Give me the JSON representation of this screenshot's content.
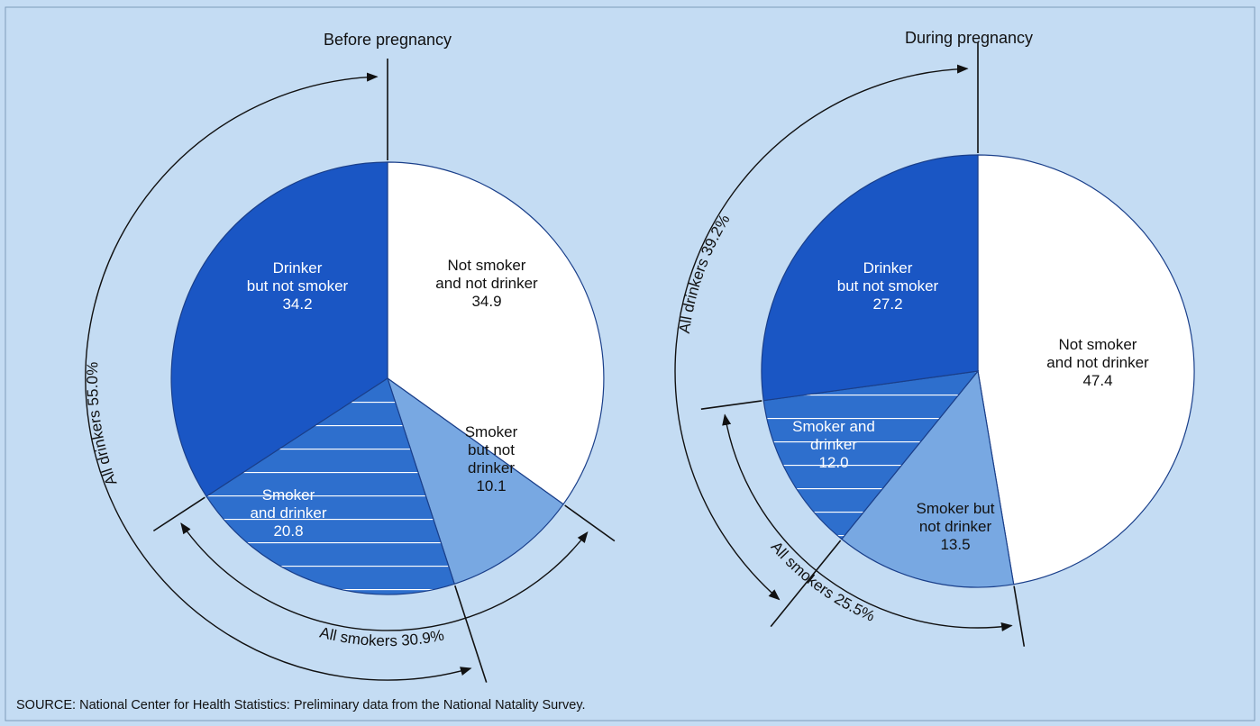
{
  "chart_data": [
    {
      "type": "pie",
      "title": "Before pregnancy",
      "slices": [
        {
          "label_lines": [
            "Not smoker",
            "and not drinker"
          ],
          "value": 34.9,
          "value_label": "34.9",
          "fill": "#ffffff",
          "hatched": false
        },
        {
          "label_lines": [
            "Smoker",
            "but not",
            "drinker"
          ],
          "value": 10.1,
          "value_label": "10.1",
          "fill": "#78a8e2",
          "hatched": false
        },
        {
          "label_lines": [
            "Smoker",
            "and drinker"
          ],
          "value": 20.8,
          "value_label": "20.8",
          "fill": "#2e6fcd",
          "hatched": true
        },
        {
          "label_lines": [
            "Drinker",
            "but not smoker"
          ],
          "value": 34.2,
          "value_label": "34.2",
          "fill": "#1a56c4",
          "hatched": false
        }
      ],
      "annotations": [
        {
          "label": "All drinkers 55.0%",
          "value": 55.0
        },
        {
          "label": "All smokers 30.9%",
          "value": 30.9
        }
      ]
    },
    {
      "type": "pie",
      "title": "During pregnancy",
      "slices": [
        {
          "label_lines": [
            "Not smoker",
            "and not drinker"
          ],
          "value": 47.4,
          "value_label": "47.4",
          "fill": "#ffffff",
          "hatched": false
        },
        {
          "label_lines": [
            "Smoker but",
            "not drinker"
          ],
          "value": 13.5,
          "value_label": "13.5",
          "fill": "#78a8e2",
          "hatched": false
        },
        {
          "label_lines": [
            "Smoker and",
            "drinker"
          ],
          "value": 12.0,
          "value_label": "12.0",
          "fill": "#2e6fcd",
          "hatched": true
        },
        {
          "label_lines": [
            "Drinker",
            "but not smoker"
          ],
          "value": 27.2,
          "value_label": "27.2",
          "fill": "#1a56c4",
          "hatched": false
        }
      ],
      "annotations": [
        {
          "label": "All drinkers 39.2%",
          "value": 39.2
        },
        {
          "label": "All smokers 25.5%",
          "value": 25.5
        }
      ]
    }
  ],
  "source_note": "SOURCE: National Center for Health Statistics: Preliminary data from the National Natality Survey."
}
